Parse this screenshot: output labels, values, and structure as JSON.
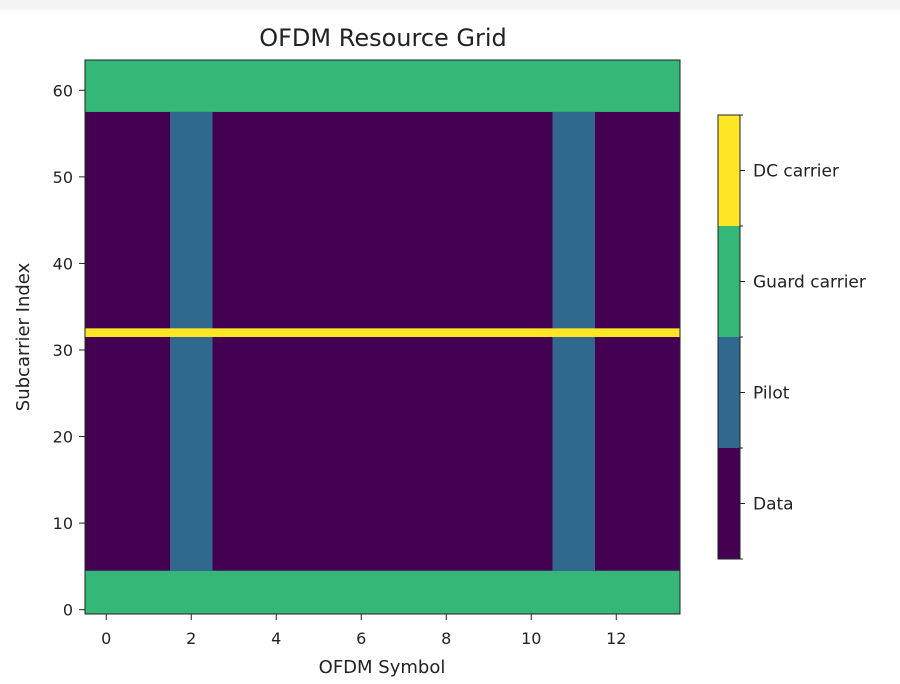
{
  "chart_data": {
    "type": "heatmap",
    "title": "OFDM Resource Grid",
    "xlabel": "OFDM Symbol",
    "ylabel": "Subcarrier Index",
    "n_symbols": 14,
    "n_subcarriers": 64,
    "xlim": [
      -0.5,
      13.5
    ],
    "ylim": [
      -0.5,
      63.5
    ],
    "xticks": [
      0,
      2,
      4,
      6,
      8,
      10,
      12
    ],
    "yticks": [
      0,
      10,
      20,
      30,
      40,
      50,
      60
    ],
    "grid": false,
    "colorbar": {
      "placement": "right",
      "categories": [
        {
          "value": 0,
          "label": "Data",
          "color": "#440154"
        },
        {
          "value": 1,
          "label": "Pilot",
          "color": "#31688e"
        },
        {
          "value": 2,
          "label": "Guard carrier",
          "color": "#35b779"
        },
        {
          "value": 3,
          "label": "DC carrier",
          "color": "#fde725"
        }
      ]
    },
    "regions": [
      {
        "category": "Guard carrier",
        "symbols": [
          0,
          13
        ],
        "subcarriers": [
          0,
          4
        ]
      },
      {
        "category": "Guard carrier",
        "symbols": [
          0,
          13
        ],
        "subcarriers": [
          58,
          63
        ]
      },
      {
        "category": "Pilot",
        "symbols": [
          2,
          2
        ],
        "subcarriers": [
          5,
          57
        ]
      },
      {
        "category": "Pilot",
        "symbols": [
          11,
          11
        ],
        "subcarriers": [
          5,
          57
        ]
      },
      {
        "category": "DC carrier",
        "symbols": [
          0,
          13
        ],
        "subcarriers": [
          32,
          32
        ]
      }
    ],
    "default_category": "Data"
  }
}
